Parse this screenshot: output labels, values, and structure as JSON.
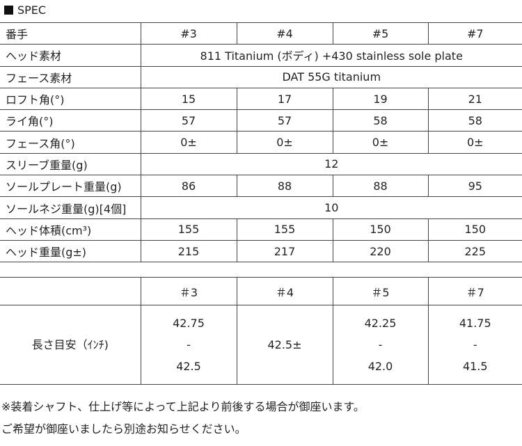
{
  "title": "SPEC",
  "spec": {
    "header": [
      "番手",
      "#3",
      "#4",
      "#5",
      "#7"
    ],
    "rows": [
      {
        "label": "ヘッド素材",
        "span": "811 Titanium (ボディ) +430 stainless sole plate"
      },
      {
        "label": "フェース素材",
        "span": "DAT 55G titanium"
      },
      {
        "label": "ロフト角(°)",
        "values": [
          "15",
          "17",
          "19",
          "21"
        ]
      },
      {
        "label": "ライ角(°)",
        "values": [
          "57",
          "57",
          "58",
          "58"
        ]
      },
      {
        "label": "フェース角(°)",
        "values": [
          "0±",
          "0±",
          "0±",
          "0±"
        ]
      },
      {
        "label": "スリーブ重量(g)",
        "span": "12"
      },
      {
        "label": "ソールプレート重量(g)",
        "values": [
          "86",
          "88",
          "88",
          "95"
        ]
      },
      {
        "label": "ソールネジ重量(g)[4個]",
        "span": "10"
      },
      {
        "label": "ヘッド体積(cm³)",
        "values": [
          "155",
          "155",
          "150",
          "150"
        ]
      },
      {
        "label": "ヘッド重量(g±)",
        "values": [
          "215",
          "217",
          "220",
          "225"
        ]
      }
    ]
  },
  "length": {
    "header": [
      "",
      "＃3",
      "＃4",
      "＃5",
      "＃7"
    ],
    "label": "長さ目安（ｲﾝﾁ)",
    "values": [
      [
        "42.75",
        "-",
        "42.5"
      ],
      [
        "42.5±"
      ],
      [
        "42.25",
        "-",
        "42.0"
      ],
      [
        "41.75",
        "-",
        "41.5"
      ]
    ]
  },
  "notes": [
    "※装着シャフト、仕上げ等によって上記より前後する場合が御座います。",
    "ご希望が御座いましたら別途お知らせください。"
  ]
}
